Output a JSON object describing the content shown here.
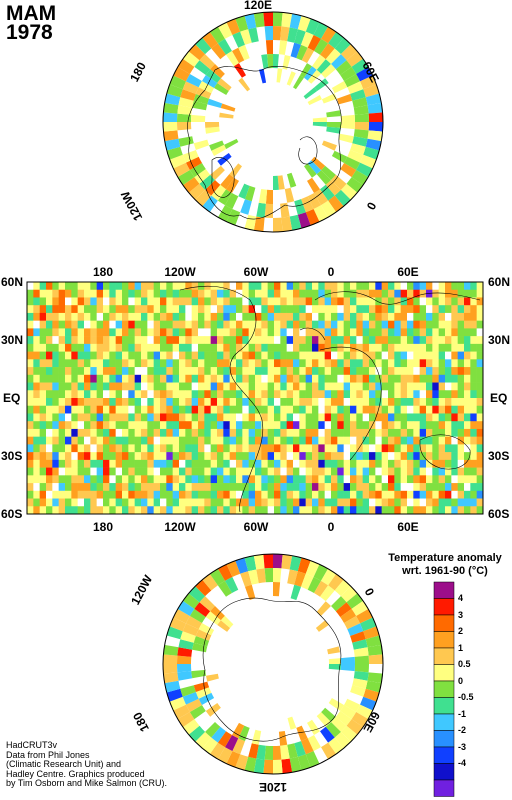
{
  "header": {
    "season": "MAM",
    "year": "1978"
  },
  "north_polar_map": {
    "labels": {
      "top": "120E",
      "upper_left": "180",
      "upper_right": "60E",
      "lower_left": "120W",
      "lower_right": "0"
    }
  },
  "global_map": {
    "lon_labels": [
      "180",
      "120W",
      "60W",
      "0",
      "60E"
    ],
    "lat_labels": [
      "60N",
      "30N",
      "EQ",
      "30S",
      "60S"
    ]
  },
  "south_polar_map": {
    "labels": {
      "bottom": "120E",
      "upper_left": "120W",
      "upper_right": "0",
      "lower_left": "180",
      "lower_right": "60E"
    }
  },
  "legend": {
    "title_line1": "Temperature anomaly",
    "title_line2": "wrt. 1961-90  (°C)",
    "ticks": [
      "4",
      "3",
      "2",
      "1",
      "0.5",
      "0",
      "-0.5",
      "-1",
      "-2",
      "-3",
      "-4"
    ],
    "colors": [
      "#9c0e8a",
      "#ff1a00",
      "#ff6a00",
      "#ffa020",
      "#ffc850",
      "#ffff80",
      "#80e040",
      "#40e090",
      "#40c8ff",
      "#2890ff",
      "#1040ff",
      "#1010cc",
      "#7020e0"
    ]
  },
  "credits": {
    "dataset": "HadCRUT3v",
    "line1": "Data from Phil Jones",
    "line2": "(Climatic Research Unit) and",
    "line3": "Hadley Centre.  Graphics produced",
    "line4": "by Tim Osborn and Mike Salmon (CRU)."
  }
}
